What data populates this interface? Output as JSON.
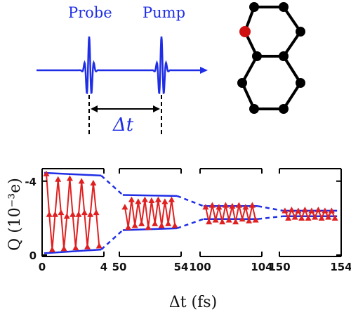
{
  "pulse_schematic": {
    "probe_label": "Probe",
    "pump_label": "Pump",
    "delay_label": "Δt",
    "line_color": "#1f2ee6"
  },
  "molecule": {
    "description_icon": "naphthalene-molecule-icon",
    "atom_color": "#000000",
    "highlight_atom_color": "#d01010"
  },
  "chart_data": {
    "type": "line",
    "ylabel": "Q (10⁻³e)",
    "xlabel": "Δt (fs)",
    "ylim": [
      0,
      4.6
    ],
    "y_inverted": true,
    "yticks": [
      0,
      4
    ],
    "ytick_labels": [
      "0",
      "-4"
    ],
    "series_color": "#e02020",
    "envelope_color": "#1f2ee6",
    "panels": [
      {
        "xlim": [
          0,
          4
        ],
        "xtick_labels": [
          "0",
          "4"
        ],
        "x": [
          0.0,
          0.22,
          0.44,
          0.66,
          0.88,
          1.1,
          1.32,
          1.54,
          1.76,
          1.98,
          2.2,
          2.42,
          2.64,
          2.86,
          3.08,
          3.3,
          3.52,
          3.74,
          3.96
        ],
        "y": [
          4.4,
          2.2,
          0.3,
          2.2,
          4.1,
          2.3,
          0.35,
          2.1,
          4.15,
          2.2,
          0.4,
          2.2,
          4.0,
          2.3,
          0.45,
          2.2,
          3.9,
          2.3,
          0.5
        ],
        "envelope_top": [
          4.45,
          4.3
        ],
        "envelope_bottom": [
          0.1,
          0.3
        ]
      },
      {
        "xlim": [
          50,
          54
        ],
        "xtick_labels": [
          "50",
          "54"
        ],
        "x": [
          50.1,
          50.35,
          50.6,
          50.85,
          51.1,
          51.35,
          51.6,
          51.85,
          52.1,
          52.35,
          52.6,
          52.85,
          53.1,
          53.35,
          53.6,
          53.85
        ],
        "y": [
          2.6,
          1.5,
          3.0,
          1.6,
          2.9,
          1.7,
          3.0,
          1.5,
          2.95,
          1.7,
          3.0,
          1.6,
          2.9,
          1.7,
          3.0,
          1.6
        ],
        "envelope_top": [
          3.25,
          3.2
        ],
        "envelope_bottom": [
          1.35,
          1.45
        ]
      },
      {
        "xlim": [
          100,
          104
        ],
        "xtick_labels": [
          "100",
          "104"
        ],
        "x": [
          100.1,
          100.35,
          100.6,
          100.85,
          101.1,
          101.35,
          101.6,
          101.85,
          102.1,
          102.35,
          102.6,
          102.85,
          103.1,
          103.35,
          103.6,
          103.85
        ],
        "y": [
          2.6,
          1.8,
          2.7,
          1.9,
          2.6,
          1.8,
          2.7,
          1.9,
          2.65,
          1.8,
          2.7,
          1.95,
          2.6,
          1.85,
          2.7,
          1.9
        ],
        "envelope_top": [
          2.65,
          2.65
        ],
        "envelope_bottom": [
          1.95,
          1.95
        ]
      },
      {
        "xlim": [
          150,
          154
        ],
        "xtick_labels": [
          "150",
          "154"
        ],
        "x": [
          150.1,
          150.35,
          150.6,
          150.85,
          151.1,
          151.35,
          151.6,
          151.85,
          152.1,
          152.35,
          152.6,
          152.85,
          153.1,
          153.35,
          153.6,
          153.85
        ],
        "y": [
          2.4,
          2.0,
          2.45,
          2.05,
          2.4,
          2.0,
          2.45,
          2.0,
          2.4,
          2.05,
          2.45,
          2.0,
          2.4,
          2.05,
          2.4,
          2.0
        ],
        "envelope_top": [
          2.4,
          2.4
        ],
        "envelope_bottom": [
          2.1,
          2.1
        ]
      }
    ]
  }
}
